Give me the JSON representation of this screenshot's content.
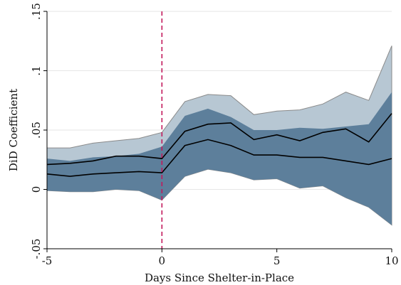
{
  "chart_data": {
    "type": "area",
    "xlabel": "Days Since Shelter-in-Place",
    "ylabel": "DiD Coefficient",
    "xlim": [
      -5,
      10
    ],
    "ylim": [
      -0.05,
      0.15
    ],
    "x_ticks": [
      -5,
      0,
      5,
      10
    ],
    "x_tick_labels": [
      "-5",
      "0",
      "5",
      "10"
    ],
    "y_ticks": [
      -0.05,
      0,
      0.05,
      0.1,
      0.15
    ],
    "y_tick_labels": [
      "-.05",
      "0",
      ".05",
      ".1",
      ".15"
    ],
    "grid": true,
    "vline": {
      "x": 0,
      "color": "#c2185b"
    },
    "x": [
      -5,
      -4,
      -3,
      -2,
      -1,
      0,
      1,
      2,
      3,
      4,
      5,
      6,
      7,
      8,
      9,
      10
    ],
    "series": [
      {
        "role": "outer_band",
        "color": "#b7c7d3",
        "upper": [
          0.035,
          0.035,
          0.039,
          0.041,
          0.043,
          0.048,
          0.074,
          0.08,
          0.079,
          0.063,
          0.066,
          0.067,
          0.072,
          0.082,
          0.075,
          0.121
        ],
        "lower": [
          -0.001,
          -0.002,
          -0.002,
          0.0,
          -0.001,
          -0.009,
          0.011,
          0.017,
          0.014,
          0.008,
          0.009,
          0.001,
          0.003,
          -0.007,
          -0.015,
          -0.03
        ]
      },
      {
        "role": "inner_band",
        "color": "#5d7f9b",
        "upper": [
          0.026,
          0.024,
          0.027,
          0.028,
          0.03,
          0.036,
          0.062,
          0.068,
          0.061,
          0.05,
          0.05,
          0.052,
          0.051,
          0.053,
          0.055,
          0.082
        ],
        "lower": [
          -0.001,
          -0.002,
          -0.002,
          0.0,
          -0.001,
          -0.009,
          0.011,
          0.017,
          0.014,
          0.008,
          0.009,
          0.001,
          0.003,
          -0.007,
          -0.015,
          -0.03
        ]
      },
      {
        "role": "line",
        "color": "#000000",
        "values": [
          0.021,
          0.022,
          0.024,
          0.028,
          0.028,
          0.026,
          0.049,
          0.055,
          0.056,
          0.042,
          0.046,
          0.041,
          0.048,
          0.051,
          0.04,
          0.064
        ]
      },
      {
        "role": "line",
        "color": "#000000",
        "values": [
          0.013,
          0.011,
          0.013,
          0.014,
          0.015,
          0.014,
          0.037,
          0.042,
          0.037,
          0.029,
          0.029,
          0.027,
          0.027,
          0.024,
          0.021,
          0.026
        ]
      }
    ]
  }
}
